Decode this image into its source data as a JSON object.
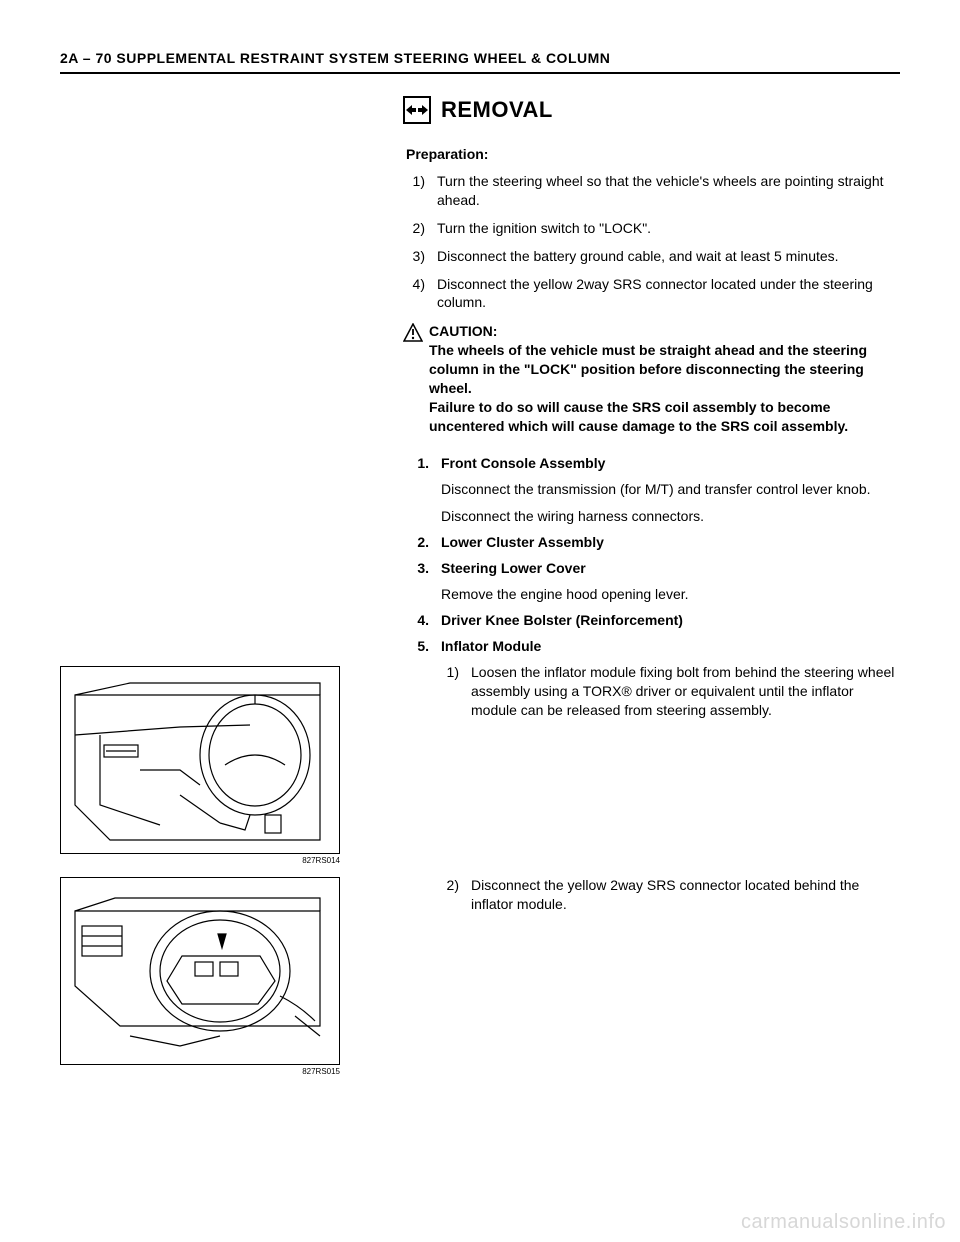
{
  "header": "2A – 70  SUPPLEMENTAL RESTRAINT SYSTEM STEERING WHEEL & COLUMN",
  "title": "REMOVAL",
  "prep": {
    "heading": "Preparation:",
    "items": [
      "Turn the steering wheel so that the vehicle's wheels are pointing straight ahead.",
      "Turn the ignition switch to \"LOCK\".",
      "Disconnect the battery ground cable, and wait at least 5 minutes.",
      "Disconnect the yellow 2way SRS connector located under the steering column."
    ]
  },
  "caution": {
    "label": "CAUTION:",
    "body": "The wheels of the vehicle must be straight ahead and the steering column in the \"LOCK\" position before disconnecting the steering wheel.\nFailure to do so will cause the SRS coil assembly to become uncentered which will cause damage to the SRS coil assembly."
  },
  "steps": [
    {
      "n": "1.",
      "title": "Front Console Assembly",
      "desc": "Disconnect the transmission (for M/T) and transfer control lever knob.",
      "desc2": "Disconnect the wiring harness connectors."
    },
    {
      "n": "2.",
      "title": "Lower Cluster Assembly"
    },
    {
      "n": "3.",
      "title": "Steering Lower Cover",
      "desc": "Remove the engine hood opening lever."
    },
    {
      "n": "4.",
      "title": "Driver Knee Bolster (Reinforcement)"
    },
    {
      "n": "5.",
      "title": "Inflator Module",
      "subs": [
        "Loosen the inflator module fixing bolt from behind the steering wheel assembly using a TORX® driver or equivalent until the inflator module can be released from steering assembly.",
        "Disconnect the yellow 2way SRS connector located behind the inflator module."
      ]
    }
  ],
  "figures": [
    {
      "id": "827RS014"
    },
    {
      "id": "827RS015"
    }
  ],
  "watermark": "carmanualsonline.info"
}
